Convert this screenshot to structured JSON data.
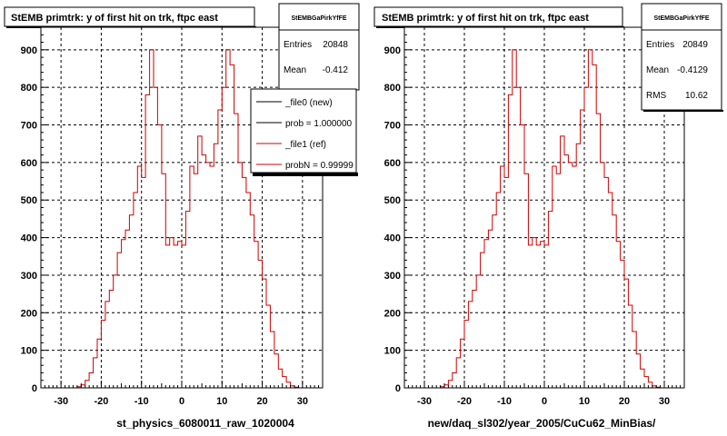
{
  "panels": [
    {
      "title": "StEMB primtrk: y of first hit on trk, ftpc east",
      "stats_name": "StEMBGaPirkYfFE",
      "stats": [
        {
          "label": "Entries",
          "value": "20848"
        },
        {
          "label": "Mean",
          "value": "-0.412"
        }
      ],
      "xlabel": "st_physics_6080011_raw_1020004",
      "legend": [
        {
          "label": "_file0 (new)",
          "color": "#000000"
        },
        {
          "label": "prob = 1.000000",
          "color": "#000000"
        },
        {
          "label": "_file1 (ref)",
          "color": "#cc0000"
        },
        {
          "label": "probN = 0.99999",
          "color": "#cc0000"
        }
      ]
    },
    {
      "title": "StEMB primtrk: y of first hit on trk, ftpc east",
      "stats_name": "StEMBGaPirkYfFE",
      "stats": [
        {
          "label": "Entries",
          "value": "20849"
        },
        {
          "label": "Mean",
          "value": "-0.4129"
        },
        {
          "label": "RMS",
          "value": "10.62"
        }
      ],
      "xlabel": "new/daq_sl302/year_2005/CuCu62_MinBias/",
      "legend": []
    }
  ],
  "chart_data": [
    {
      "type": "histogram",
      "title": "StEMB primtrk: y of first hit on trk, ftpc east",
      "xlabel": "st_physics_6080011_raw_1020004",
      "ylabel": "",
      "xlim": [
        -35,
        35
      ],
      "ylim": [
        0,
        960
      ],
      "x_ticks": [
        -30,
        -20,
        -10,
        0,
        10,
        20,
        30
      ],
      "y_ticks": [
        0,
        100,
        200,
        300,
        400,
        500,
        600,
        700,
        800,
        900
      ],
      "grid": true,
      "bin_edges_start": -35,
      "bin_width": 1,
      "series": [
        {
          "name": "_file1 (ref)",
          "color": "#cc0000",
          "values": [
            0,
            0,
            0,
            0,
            0,
            0,
            0,
            0,
            0,
            3,
            8,
            20,
            40,
            80,
            130,
            180,
            230,
            260,
            300,
            360,
            395,
            420,
            460,
            520,
            590,
            560,
            780,
            900,
            800,
            700,
            570,
            380,
            400,
            380,
            390,
            380,
            470,
            590,
            570,
            670,
            620,
            600,
            590,
            650,
            740,
            800,
            900,
            860,
            730,
            600,
            560,
            520,
            460,
            390,
            340,
            290,
            220,
            150,
            90,
            50,
            30,
            15,
            5,
            2,
            0,
            0,
            0,
            0,
            0,
            0
          ]
        }
      ]
    },
    {
      "type": "histogram",
      "title": "StEMB primtrk: y of first hit on trk, ftpc east",
      "xlabel": "new/daq_sl302/year_2005/CuCu62_MinBias/",
      "ylabel": "",
      "xlim": [
        -35,
        35
      ],
      "ylim": [
        0,
        960
      ],
      "x_ticks": [
        -30,
        -20,
        -10,
        0,
        10,
        20,
        30
      ],
      "y_ticks": [
        0,
        100,
        200,
        300,
        400,
        500,
        600,
        700,
        800,
        900
      ],
      "grid": true,
      "bin_edges_start": -35,
      "bin_width": 1,
      "series": [
        {
          "name": "",
          "color": "#cc0000",
          "values": [
            0,
            0,
            0,
            0,
            0,
            0,
            0,
            0,
            0,
            3,
            8,
            20,
            40,
            80,
            130,
            180,
            230,
            260,
            300,
            360,
            395,
            420,
            460,
            520,
            590,
            560,
            780,
            900,
            800,
            700,
            570,
            380,
            400,
            380,
            390,
            380,
            470,
            590,
            570,
            670,
            620,
            600,
            590,
            650,
            740,
            800,
            900,
            860,
            730,
            600,
            560,
            520,
            460,
            390,
            340,
            290,
            220,
            150,
            90,
            50,
            30,
            15,
            5,
            2,
            0,
            0,
            0,
            0,
            0,
            0
          ]
        }
      ]
    }
  ]
}
